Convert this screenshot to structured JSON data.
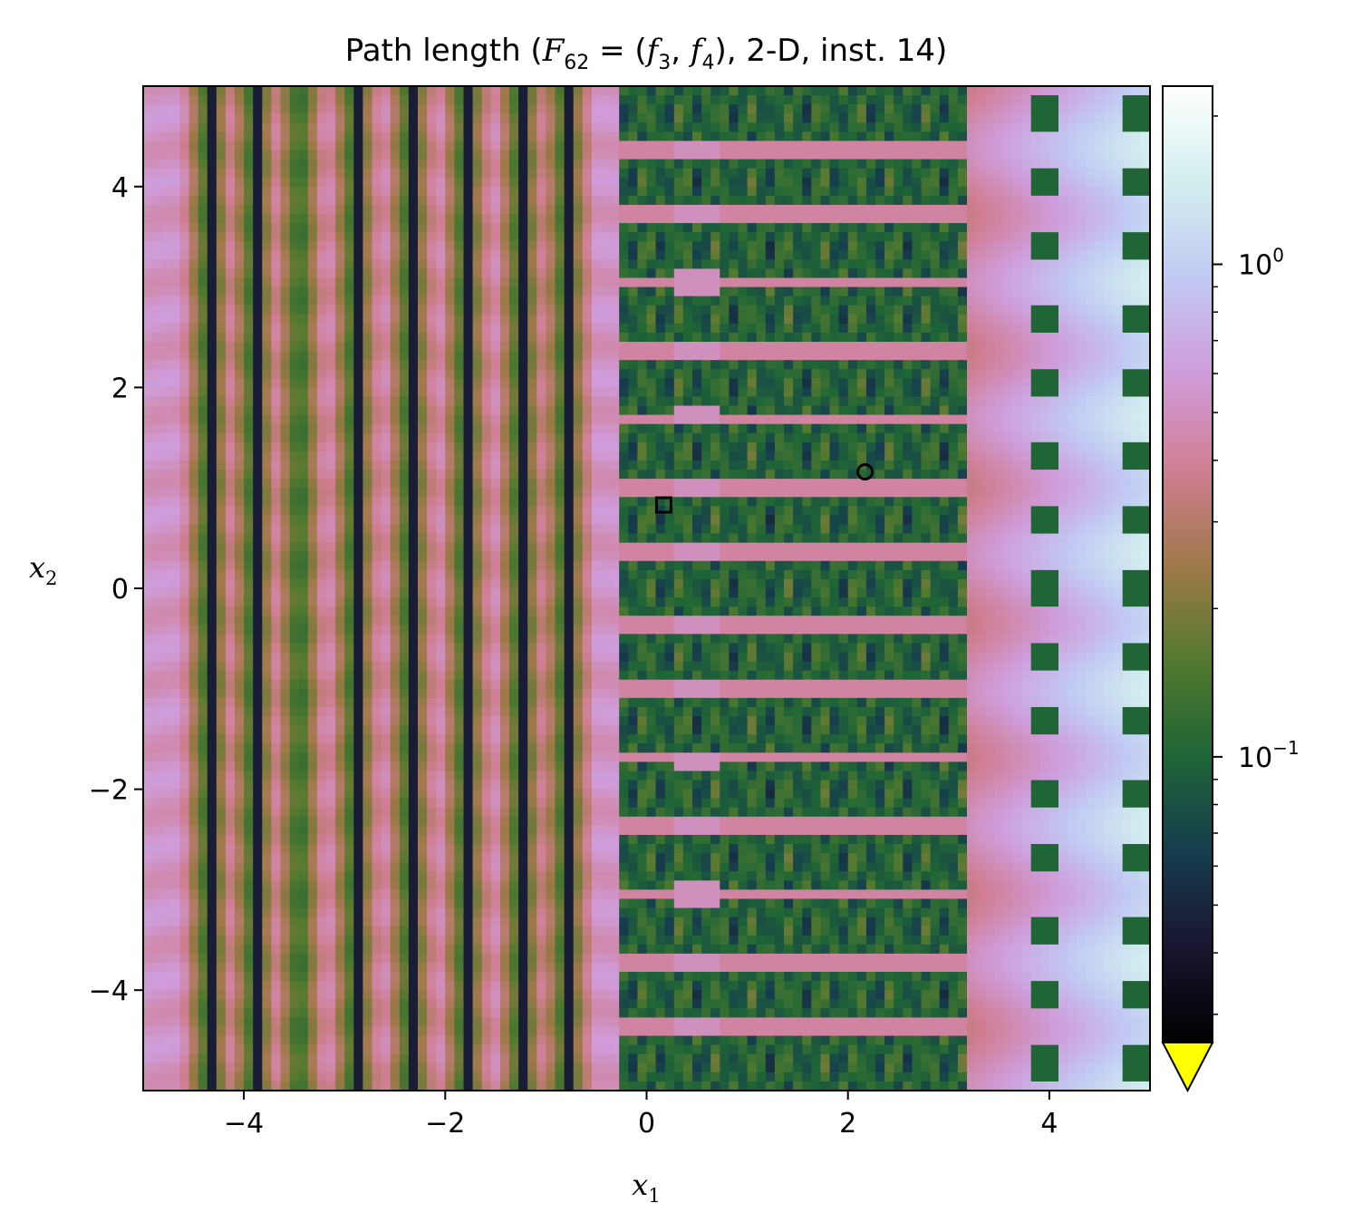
{
  "chart_data": {
    "type": "heatmap",
    "title": {
      "prefix": "Path length (",
      "F": "F",
      "F_sub": "62",
      "eq": " = (",
      "f3": "f",
      "f3_sub": "3",
      "comma": ", ",
      "f4": "f",
      "f4_sub": "4",
      "suffix": "), 2-D, inst. 14)"
    },
    "xlabel": {
      "base": "x",
      "sub": "1"
    },
    "ylabel": {
      "base": "x",
      "sub": "2"
    },
    "xlim": [
      -5,
      5
    ],
    "ylim": [
      -5,
      5
    ],
    "xticks": [
      -4,
      -2,
      0,
      2,
      4
    ],
    "yticks": [
      -4,
      -2,
      0,
      2,
      4
    ],
    "xtick_labels": [
      "−4",
      "−2",
      "0",
      "2",
      "4"
    ],
    "ytick_labels": [
      "−4",
      "−2",
      "0",
      "2",
      "4"
    ],
    "colormap": "cubehelix",
    "color_scale": "log",
    "colorbar": {
      "ticks": [
        {
          "value": 1,
          "base": "10",
          "exp": "0"
        },
        {
          "value": 0.1,
          "base": "10",
          "exp": "−1"
        }
      ],
      "range": [
        0.0263,
        2.3
      ],
      "extend": "min",
      "under_color": "#ffff00"
    },
    "markers": [
      {
        "shape": "square",
        "x": 0.17,
        "y": 0.83,
        "color": "#000000"
      },
      {
        "shape": "circle",
        "x": 2.17,
        "y": 1.16,
        "color": "#000000"
      }
    ],
    "grid": false
  }
}
